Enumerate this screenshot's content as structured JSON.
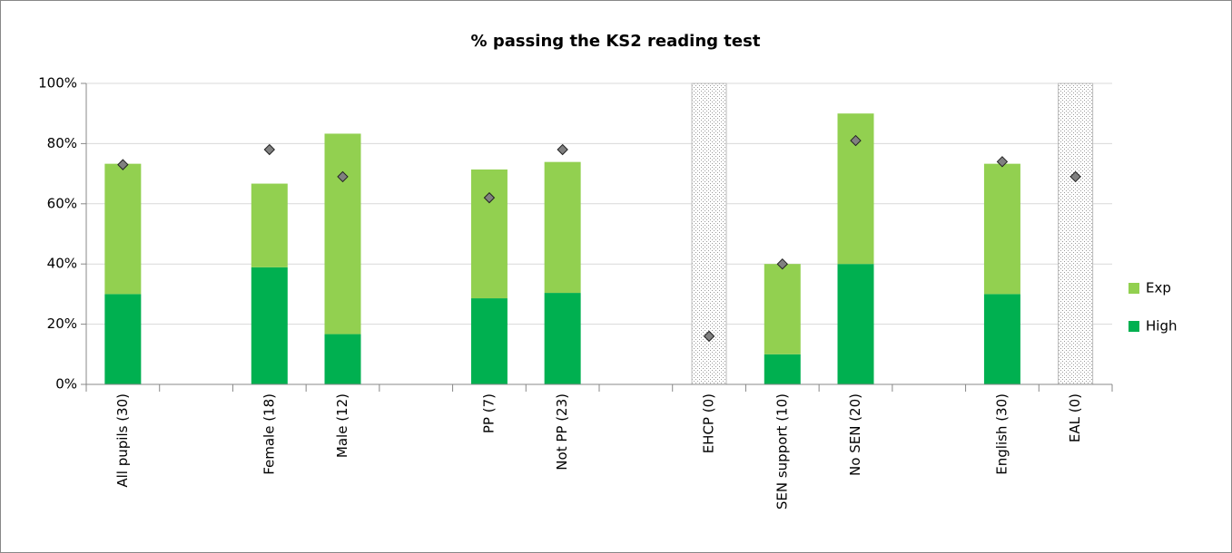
{
  "chart_data": {
    "type": "stacked_bar",
    "title": "% passing the KS2 reading test",
    "categories": [
      "All pupils (30)",
      null,
      "Female (18)",
      "Male (12)",
      null,
      "PP (7)",
      "Not PP (23)",
      null,
      "EHCP (0)",
      "SEN support (10)",
      "No SEN (20)",
      null,
      "English (30)",
      "EAL (0)"
    ],
    "series": [
      {
        "name": "High",
        "color": "#00b050",
        "values": [
          30,
          null,
          38.9,
          16.7,
          null,
          28.6,
          30.4,
          null,
          null,
          10,
          40,
          null,
          30,
          null
        ]
      },
      {
        "name": "Exp",
        "color": "#92d050",
        "values": [
          43.3,
          null,
          27.8,
          66.6,
          null,
          42.8,
          43.5,
          null,
          null,
          30,
          50,
          null,
          43.3,
          null
        ]
      },
      {
        "type": "marker",
        "color": "#808080",
        "values": [
          73,
          null,
          78,
          69,
          null,
          62,
          78,
          null,
          16,
          40,
          81,
          null,
          74,
          69
        ]
      }
    ],
    "ylim": [
      0,
      100
    ],
    "yticks": [
      {
        "value": 0,
        "label": "0%"
      },
      {
        "value": 20,
        "label": "20%"
      },
      {
        "value": 40,
        "label": "40%"
      },
      {
        "value": 60,
        "label": "60%"
      },
      {
        "value": 80,
        "label": "80%"
      },
      {
        "value": 100,
        "label": "100%"
      }
    ],
    "grid": true,
    "legend": "right"
  }
}
